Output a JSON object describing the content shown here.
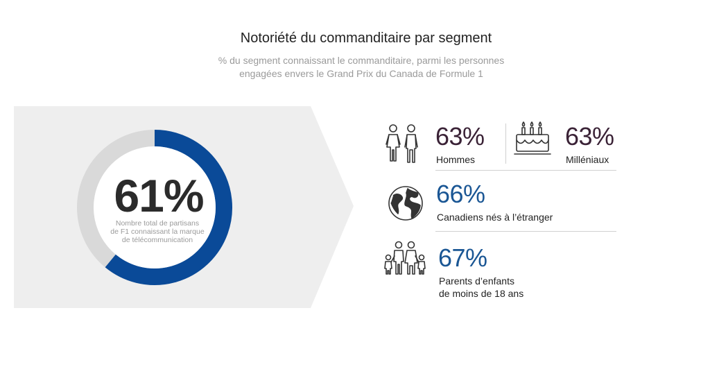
{
  "header": {
    "title": "Notoriété du commanditaire par segment",
    "subtitle_line1": "%  du segment connaissant le commanditaire, parmi les personnes",
    "subtitle_line2": "engagées envers le Grand Prix du Canada de Formule 1"
  },
  "colors": {
    "donut_fill": "#0a4a98",
    "donut_track": "#d9d9d9",
    "panel_bg": "#eeeeee",
    "stat_purple": "#3a2236",
    "stat_blue": "#1a5694"
  },
  "chart_data": {
    "type": "pie",
    "variant": "donut",
    "total": {
      "value_label": "61%",
      "value": 61,
      "caption_line1": "Nombre total de partisans",
      "caption_line2": "de F1 connaissant la marque",
      "caption_line3": "de télécommunication"
    },
    "segments": [
      {
        "id": "men",
        "value": 63,
        "value_label": "63%",
        "label": "Hommes",
        "icon": "man-woman-icon"
      },
      {
        "id": "millennials",
        "value": 63,
        "value_label": "63%",
        "label": "Milléniaux",
        "icon": "birthday-cake-icon"
      },
      {
        "id": "foreign_born",
        "value": 66,
        "value_label": "66%",
        "label": "Canadiens nés à l’étranger",
        "icon": "globe-icon"
      },
      {
        "id": "parents",
        "value": 67,
        "value_label": "67%",
        "label_line1": "Parents d’enfants",
        "label_line2": "de moins de 18 ans",
        "icon": "family-icon"
      }
    ]
  }
}
